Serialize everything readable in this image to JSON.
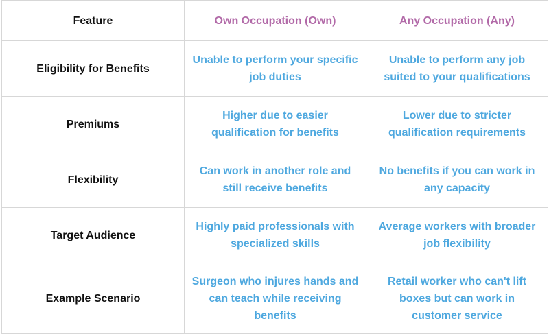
{
  "table": {
    "headers": {
      "feature": "Feature",
      "own": "Own Occupation (Own)",
      "any": "Any Occupation (Any)"
    },
    "rows": [
      {
        "feature": "Eligibility for Benefits",
        "own": "Unable to perform your specific job duties",
        "any": "Unable to perform any job suited to your qualifications"
      },
      {
        "feature": "Premiums",
        "own": "Higher due to easier qualification for benefits",
        "any": "Lower due to stricter qualification requirements"
      },
      {
        "feature": "Flexibility",
        "own": "Can work in another role and still receive benefits",
        "any": "No benefits if you can work in any capacity"
      },
      {
        "feature": "Target Audience",
        "own": "Highly paid professionals with specialized skills",
        "any": "Average workers with broader job flexibility"
      },
      {
        "feature": "Example Scenario",
        "own": "Surgeon who injures hands and can teach while receiving benefits",
        "any": "Retail worker who can't lift boxes but can work in customer service"
      }
    ]
  },
  "colors": {
    "header_accent": "#b26aa8",
    "value_text": "#4ea8df",
    "feature_text": "#111111",
    "border": "#d7d7d7"
  }
}
